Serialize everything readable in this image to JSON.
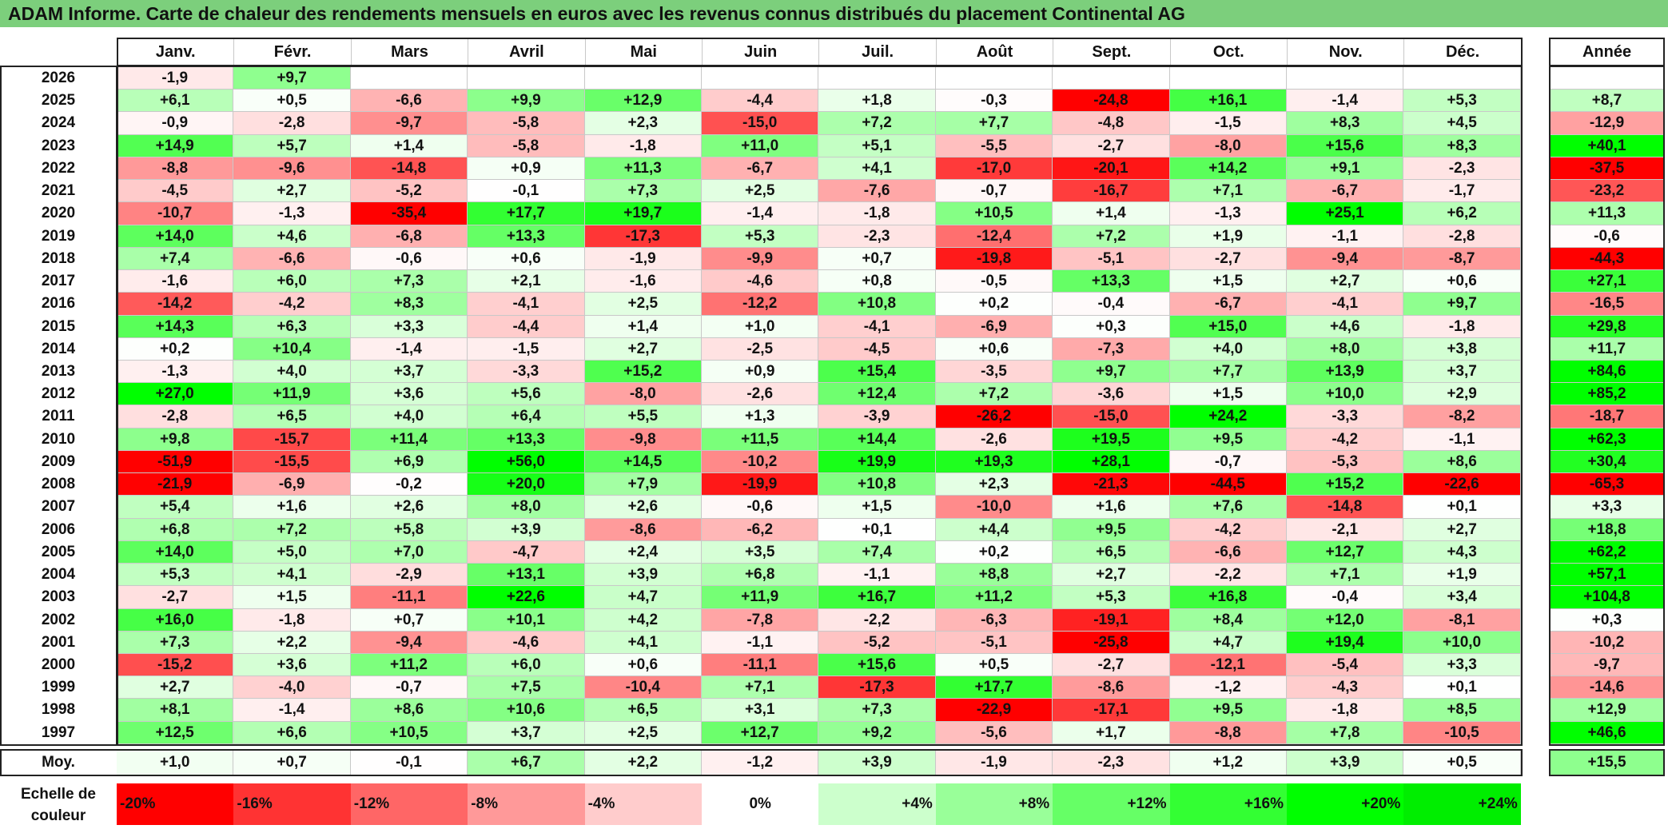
{
  "title": "ADAM Informe. Carte de chaleur des rendements mensuels en euros avec les revenus connus distribués du placement Continental AG",
  "chart_data": {
    "type": "heatmap",
    "columns": [
      "Janv.",
      "Févr.",
      "Mars",
      "Avril",
      "Mai",
      "Juin",
      "Juil.",
      "Août",
      "Sept.",
      "Oct.",
      "Nov.",
      "Déc."
    ],
    "year_header": "Année",
    "avg_label": "Moy.",
    "rows": [
      {
        "year": "2026",
        "months": [
          "-1,9",
          "+9,7",
          "",
          "",
          "",
          "",
          "",
          "",
          "",
          "",
          "",
          ""
        ],
        "annual": ""
      },
      {
        "year": "2025",
        "months": [
          "+6,1",
          "+0,5",
          "-6,6",
          "+9,9",
          "+12,9",
          "-4,4",
          "+1,8",
          "-0,3",
          "-24,8",
          "+16,1",
          "-1,4",
          "+5,3"
        ],
        "annual": "+8,7"
      },
      {
        "year": "2024",
        "months": [
          "-0,9",
          "-2,8",
          "-9,7",
          "-5,8",
          "+2,3",
          "-15,0",
          "+7,2",
          "+7,7",
          "-4,8",
          "-1,5",
          "+8,3",
          "+4,5"
        ],
        "annual": "-12,9"
      },
      {
        "year": "2023",
        "months": [
          "+14,9",
          "+5,7",
          "+1,4",
          "-5,8",
          "-1,8",
          "+11,0",
          "+5,1",
          "-5,5",
          "-2,7",
          "-8,0",
          "+15,6",
          "+8,3"
        ],
        "annual": "+40,1"
      },
      {
        "year": "2022",
        "months": [
          "-8,8",
          "-9,6",
          "-14,8",
          "+0,9",
          "+11,3",
          "-6,7",
          "+4,1",
          "-17,0",
          "-20,1",
          "+14,2",
          "+9,1",
          "-2,3"
        ],
        "annual": "-37,5"
      },
      {
        "year": "2021",
        "months": [
          "-4,5",
          "+2,7",
          "-5,2",
          "-0,1",
          "+7,3",
          "+2,5",
          "-7,6",
          "-0,7",
          "-16,7",
          "+7,1",
          "-6,7",
          "-1,7"
        ],
        "annual": "-23,2"
      },
      {
        "year": "2020",
        "months": [
          "-10,7",
          "-1,3",
          "-35,4",
          "+17,7",
          "+19,7",
          "-1,4",
          "-1,8",
          "+10,5",
          "+1,4",
          "-1,3",
          "+25,1",
          "+6,2"
        ],
        "annual": "+11,3"
      },
      {
        "year": "2019",
        "months": [
          "+14,0",
          "+4,6",
          "-6,8",
          "+13,3",
          "-17,3",
          "+5,3",
          "-2,3",
          "-12,4",
          "+7,2",
          "+1,9",
          "-1,1",
          "-2,8"
        ],
        "annual": "-0,6"
      },
      {
        "year": "2018",
        "months": [
          "+7,4",
          "-6,6",
          "-0,6",
          "+0,6",
          "-1,9",
          "-9,9",
          "+0,7",
          "-19,8",
          "-5,1",
          "-2,7",
          "-9,4",
          "-8,7"
        ],
        "annual": "-44,3"
      },
      {
        "year": "2017",
        "months": [
          "-1,6",
          "+6,0",
          "+7,3",
          "+2,1",
          "-1,6",
          "-4,6",
          "+0,8",
          "-0,5",
          "+13,3",
          "+1,5",
          "+2,7",
          "+0,6"
        ],
        "annual": "+27,1"
      },
      {
        "year": "2016",
        "months": [
          "-14,2",
          "-4,2",
          "+8,3",
          "-4,1",
          "+2,5",
          "-12,2",
          "+10,8",
          "+0,2",
          "-0,4",
          "-6,7",
          "-4,1",
          "+9,7"
        ],
        "annual": "-16,5"
      },
      {
        "year": "2015",
        "months": [
          "+14,3",
          "+6,3",
          "+3,3",
          "-4,4",
          "+1,4",
          "+1,0",
          "-4,1",
          "-6,9",
          "+0,3",
          "+15,0",
          "+4,6",
          "-1,8"
        ],
        "annual": "+29,8"
      },
      {
        "year": "2014",
        "months": [
          "+0,2",
          "+10,4",
          "-1,4",
          "-1,5",
          "+2,7",
          "-2,5",
          "-4,5",
          "+0,6",
          "-7,3",
          "+4,0",
          "+8,0",
          "+3,8"
        ],
        "annual": "+11,7"
      },
      {
        "year": "2013",
        "months": [
          "-1,3",
          "+4,0",
          "+3,7",
          "-3,3",
          "+15,2",
          "+0,9",
          "+15,4",
          "-3,5",
          "+9,7",
          "+7,7",
          "+13,9",
          "+3,7"
        ],
        "annual": "+84,6"
      },
      {
        "year": "2012",
        "months": [
          "+27,0",
          "+11,9",
          "+3,6",
          "+5,6",
          "-8,0",
          "-2,6",
          "+12,4",
          "+7,2",
          "-3,6",
          "+1,5",
          "+10,0",
          "+2,9"
        ],
        "annual": "+85,2"
      },
      {
        "year": "2011",
        "months": [
          "-2,8",
          "+6,5",
          "+4,0",
          "+6,4",
          "+5,5",
          "+1,3",
          "-3,9",
          "-26,2",
          "-15,0",
          "+24,2",
          "-3,3",
          "-8,2"
        ],
        "annual": "-18,7"
      },
      {
        "year": "2010",
        "months": [
          "+9,8",
          "-15,7",
          "+11,4",
          "+13,3",
          "-9,8",
          "+11,5",
          "+14,4",
          "-2,6",
          "+19,5",
          "+9,5",
          "-4,2",
          "-1,1"
        ],
        "annual": "+62,3"
      },
      {
        "year": "2009",
        "months": [
          "-51,9",
          "-15,5",
          "+6,9",
          "+56,0",
          "+14,5",
          "-10,2",
          "+19,9",
          "+19,3",
          "+28,1",
          "-0,7",
          "-5,3",
          "+8,6"
        ],
        "annual": "+30,4"
      },
      {
        "year": "2008",
        "months": [
          "-21,9",
          "-6,9",
          "-0,2",
          "+20,0",
          "+7,9",
          "-19,9",
          "+10,8",
          "+2,3",
          "-21,3",
          "-44,5",
          "+15,2",
          "-22,6"
        ],
        "annual": "-65,3"
      },
      {
        "year": "2007",
        "months": [
          "+5,4",
          "+1,6",
          "+2,6",
          "+8,0",
          "+2,6",
          "-0,6",
          "+1,5",
          "-10,0",
          "+1,6",
          "+7,6",
          "-14,8",
          "+0,1"
        ],
        "annual": "+3,3"
      },
      {
        "year": "2006",
        "months": [
          "+6,8",
          "+7,2",
          "+5,8",
          "+3,9",
          "-8,6",
          "-6,2",
          "+0,1",
          "+4,4",
          "+9,5",
          "-4,2",
          "-2,1",
          "+2,7"
        ],
        "annual": "+18,8"
      },
      {
        "year": "2005",
        "months": [
          "+14,0",
          "+5,0",
          "+7,0",
          "-4,7",
          "+2,4",
          "+3,5",
          "+7,4",
          "+0,2",
          "+6,5",
          "-6,6",
          "+12,7",
          "+4,3"
        ],
        "annual": "+62,2"
      },
      {
        "year": "2004",
        "months": [
          "+5,3",
          "+4,1",
          "-2,9",
          "+13,1",
          "+3,9",
          "+6,8",
          "-1,1",
          "+8,8",
          "+2,7",
          "-2,2",
          "+7,1",
          "+1,9"
        ],
        "annual": "+57,1"
      },
      {
        "year": "2003",
        "months": [
          "-2,7",
          "+1,5",
          "-11,1",
          "+22,6",
          "+4,7",
          "+11,9",
          "+16,7",
          "+11,2",
          "+5,3",
          "+16,8",
          "-0,4",
          "+3,4"
        ],
        "annual": "+104,8"
      },
      {
        "year": "2002",
        "months": [
          "+16,0",
          "-1,8",
          "+0,7",
          "+10,1",
          "+4,2",
          "-7,8",
          "-2,2",
          "-6,3",
          "-19,1",
          "+8,4",
          "+12,0",
          "-8,1"
        ],
        "annual": "+0,3"
      },
      {
        "year": "2001",
        "months": [
          "+7,3",
          "+2,2",
          "-9,4",
          "-4,6",
          "+4,1",
          "-1,1",
          "-5,2",
          "-5,1",
          "-25,8",
          "+4,7",
          "+19,4",
          "+10,0"
        ],
        "annual": "-10,2"
      },
      {
        "year": "2000",
        "months": [
          "-15,2",
          "+3,6",
          "+11,2",
          "+6,0",
          "+0,6",
          "-11,1",
          "+15,6",
          "+0,5",
          "-2,7",
          "-12,1",
          "-5,4",
          "+3,3"
        ],
        "annual": "-9,7"
      },
      {
        "year": "1999",
        "months": [
          "+2,7",
          "-4,0",
          "-0,7",
          "+7,5",
          "-10,4",
          "+7,1",
          "-17,3",
          "+17,7",
          "-8,6",
          "-1,2",
          "-4,3",
          "+0,1"
        ],
        "annual": "-14,6"
      },
      {
        "year": "1998",
        "months": [
          "+8,1",
          "-1,4",
          "+8,6",
          "+10,6",
          "+6,5",
          "+3,1",
          "+7,3",
          "-22,9",
          "-17,1",
          "+9,5",
          "-1,8",
          "+8,5"
        ],
        "annual": "+12,9"
      },
      {
        "year": "1997",
        "months": [
          "+12,5",
          "+6,6",
          "+10,5",
          "+3,7",
          "+2,5",
          "+12,7",
          "+9,2",
          "-5,6",
          "+1,7",
          "-8,8",
          "+7,8",
          "-10,5"
        ],
        "annual": "+46,6"
      }
    ],
    "averages": [
      "+1,0",
      "+0,7",
      "-0,1",
      "+6,7",
      "+2,2",
      "-1,2",
      "+3,9",
      "-1,9",
      "-2,3",
      "+1,2",
      "+3,9",
      "+0,5"
    ],
    "average_annual": "+15,5",
    "color_scale": {
      "label": "Echelle de couleur",
      "stops": [
        "-20%",
        "-16%",
        "-12%",
        "-8%",
        "-4%",
        "0%",
        "+4%",
        "+8%",
        "+12%",
        "+16%",
        "+20%",
        "+24%"
      ],
      "colors": [
        "#ff0000",
        "#ff3333",
        "#ff6666",
        "#ff9999",
        "#ffcccc",
        "#ffffff",
        "#ccffcc",
        "#99ff99",
        "#66ff66",
        "#33ff33",
        "#00ff00",
        "#00ee00"
      ]
    },
    "negative_color": "#ff0000",
    "positive_color": "#00ff00"
  }
}
